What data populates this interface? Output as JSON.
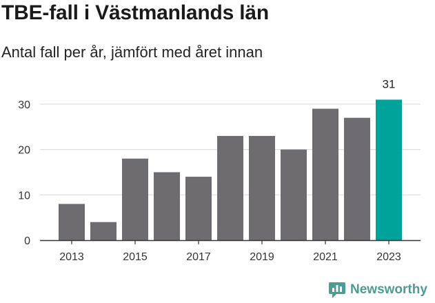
{
  "header": {
    "title": "TBE-fall i Västmanlands län",
    "subtitle": "Antal fall per år, jämfört med året innan"
  },
  "brand": {
    "name": "Newsworthy",
    "icon": "newsworthy-logo-icon",
    "color": "#4e9b94"
  },
  "colors": {
    "bar": "#6e6c70",
    "highlight": "#00a39a"
  },
  "chart_data": {
    "type": "bar",
    "title": "TBE-fall i Västmanlands län",
    "subtitle": "Antal fall per år, jämfört med året innan",
    "categories": [
      "2013",
      "2014",
      "2015",
      "2016",
      "2017",
      "2018",
      "2019",
      "2020",
      "2021",
      "2022",
      "2023"
    ],
    "values": [
      8,
      4,
      18,
      15,
      14,
      23,
      23,
      20,
      29,
      27,
      31
    ],
    "x_tick_labels": [
      "2013",
      "2015",
      "2017",
      "2019",
      "2021",
      "2023"
    ],
    "y_ticks": [
      0,
      10,
      20,
      30
    ],
    "ylim": [
      0,
      33.8
    ],
    "highlight_category": "2023",
    "highlight_label": "31",
    "grid": true,
    "legend": "none"
  }
}
